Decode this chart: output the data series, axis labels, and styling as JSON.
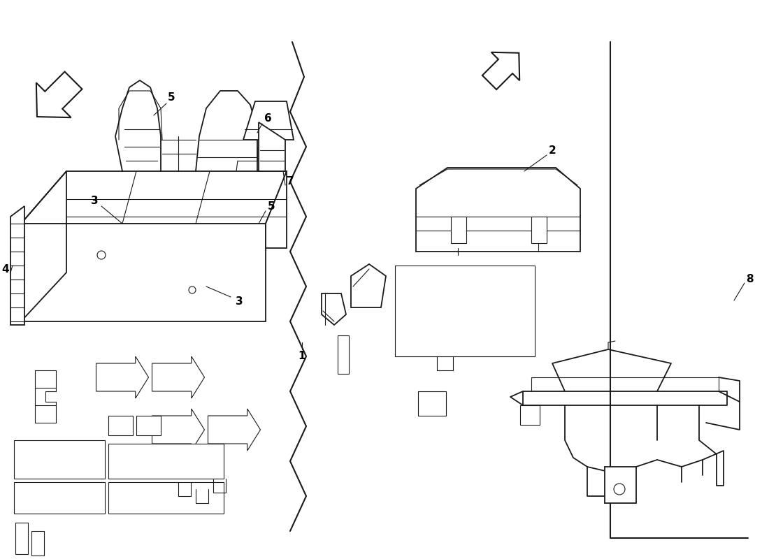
{
  "background_color": "#ffffff",
  "line_color": "#1a1a1a",
  "label_color": "#000000",
  "fig_width": 11.0,
  "fig_height": 8.0,
  "dpi": 100
}
